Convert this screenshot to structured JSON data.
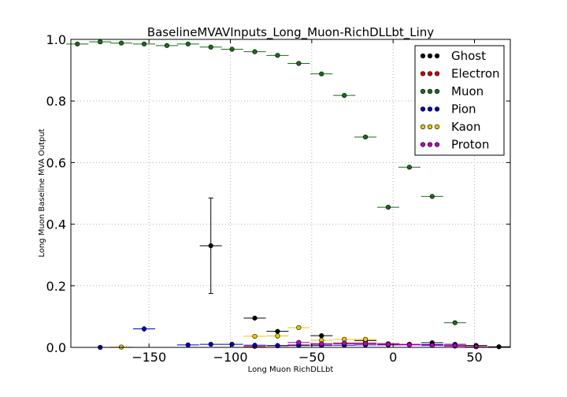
{
  "chart_data": {
    "type": "scatter",
    "title": "BaselineMVAVInputs_Long_Muon-RichDLLbt_Liny",
    "xlabel": "Long Muon RichDLLbt",
    "ylabel": "Long Muon Baseline MVA Output",
    "xlim": [
      -198,
      72
    ],
    "ylim": [
      0,
      1
    ],
    "x_ticks": [
      -150,
      -100,
      -50,
      0,
      50
    ],
    "x_tick_labels": [
      "−150",
      "−100",
      "−50",
      "0",
      "50"
    ],
    "y_ticks": [
      0,
      0.2,
      0.4,
      0.6,
      0.8,
      1
    ],
    "y_tick_labels": [
      "0.0",
      "0.2",
      "0.4",
      "0.6",
      "0.8",
      "1.0"
    ],
    "grid": true,
    "legend_position": "top-right",
    "x_error": 6.8,
    "series": [
      {
        "name": "Ghost",
        "color": "#000000",
        "x": [
          -112,
          -85,
          -71,
          -44,
          -17,
          24,
          51,
          65
        ],
        "y": [
          0.33,
          0.095,
          0.052,
          0.038,
          0.022,
          0.015,
          0.006,
          0.002
        ],
        "yerr": [
          0.155,
          0.004,
          0.004,
          0.004,
          0.003,
          0.003,
          0.002,
          0.001
        ]
      },
      {
        "name": "Electron",
        "color": "#cc0000",
        "x": [
          -85,
          -71,
          -58,
          -44,
          -30,
          -17,
          -3,
          10,
          24,
          38
        ],
        "y": [
          0.003,
          0.005,
          0.008,
          0.01,
          0.012,
          0.014,
          0.012,
          0.01,
          0.008,
          0.006
        ]
      },
      {
        "name": "Muon",
        "color": "#1a6b1a",
        "x": [
          -194,
          -180,
          -167,
          -153,
          -139,
          -126,
          -112,
          -99,
          -85,
          -71,
          -58,
          -44,
          -30,
          -17,
          -3,
          10,
          24,
          38
        ],
        "y": [
          0.985,
          0.992,
          0.988,
          0.985,
          0.98,
          0.985,
          0.975,
          0.968,
          0.96,
          0.948,
          0.922,
          0.888,
          0.818,
          0.683,
          0.455,
          0.585,
          0.49,
          0.08
        ]
      },
      {
        "name": "Pion",
        "color": "#0000bb",
        "x": [
          -180,
          -153,
          -126,
          -112,
          -99,
          -85,
          -71,
          -58,
          -44,
          -30,
          -17,
          -3,
          10,
          24,
          38
        ],
        "y": [
          0.0,
          0.06,
          0.008,
          0.01,
          0.01,
          0.007,
          0.006,
          0.006,
          0.006,
          0.007,
          0.008,
          0.008,
          0.009,
          0.009,
          0.01
        ],
        "yerr": [
          0,
          0.01,
          0.002,
          0.002,
          0.002,
          0.001,
          0.001,
          0.001,
          0.001,
          0.001,
          0.001,
          0.001,
          0.001,
          0.001,
          0.001
        ]
      },
      {
        "name": "Kaon",
        "color": "#e8c800",
        "x": [
          -167,
          -85,
          -71,
          -58,
          -44,
          -30,
          -17,
          51
        ],
        "y": [
          0.001,
          0.036,
          0.037,
          0.064,
          0.023,
          0.026,
          0.026,
          0.002
        ]
      },
      {
        "name": "Proton",
        "color": "#bb00bb",
        "x": [
          -58,
          -44,
          -30,
          -17,
          -3,
          10,
          24,
          38,
          51
        ],
        "y": [
          0.016,
          0.012,
          0.014,
          0.012,
          0.01,
          0.008,
          0.006,
          0.004,
          0.002
        ]
      }
    ]
  }
}
